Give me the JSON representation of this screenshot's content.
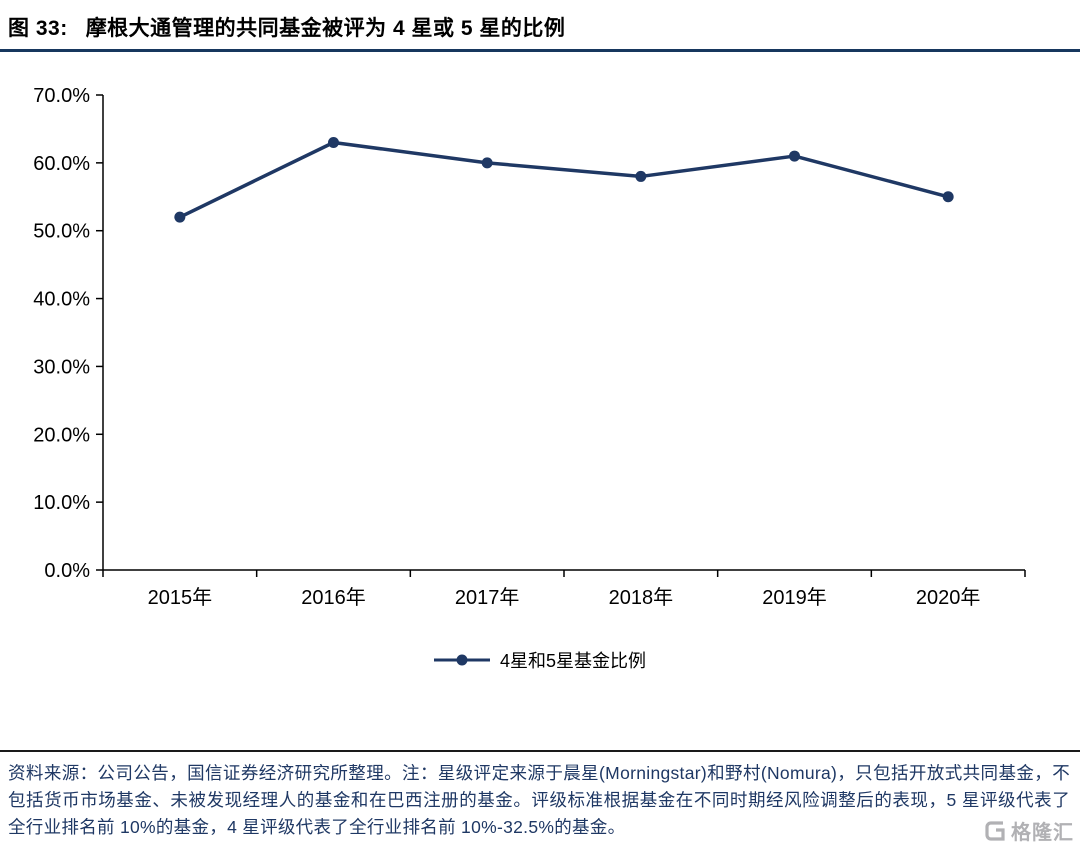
{
  "title": {
    "prefix": "图 33:",
    "text": "摩根大通管理的共同基金被评为 4 星或 5 星的比例"
  },
  "chart_data": {
    "type": "line",
    "categories": [
      "2015年",
      "2016年",
      "2017年",
      "2018年",
      "2019年",
      "2020年"
    ],
    "series": [
      {
        "name": "4星和5星基金比例",
        "values": [
          52,
          63,
          60,
          58,
          61,
          55
        ]
      }
    ],
    "unit": "%",
    "ylim": [
      0,
      70
    ],
    "ytick_step": 10,
    "ytick_labels": [
      "0.0%",
      "10.0%",
      "20.0%",
      "30.0%",
      "40.0%",
      "50.0%",
      "60.0%",
      "70.0%"
    ],
    "grid": "off",
    "legend_position": "bottom",
    "line_color": "#1f3864",
    "marker": "circle"
  },
  "footer": {
    "source_text": "资料来源：公司公告，国信证券经济研究所整理。注：星级评定来源于晨星(Morningstar)和野村(Nomura)，只包括开放式共同基金，不包括货币市场基金、未被发现经理人的基金和在巴西注册的基金。评级标准根据基金在不同时期经风险调整后的表现，5 星评级代表了全行业排名前 10%的基金，4 星评级代表了全行业排名前 10%-32.5%的基金。",
    "logo_text": "格隆汇"
  },
  "colors": {
    "accent": "#1f3864",
    "title_rule": "#17375e",
    "axis": "#000000",
    "footer_text": "#1f3864",
    "logo_grey": "#b1b1b4"
  }
}
